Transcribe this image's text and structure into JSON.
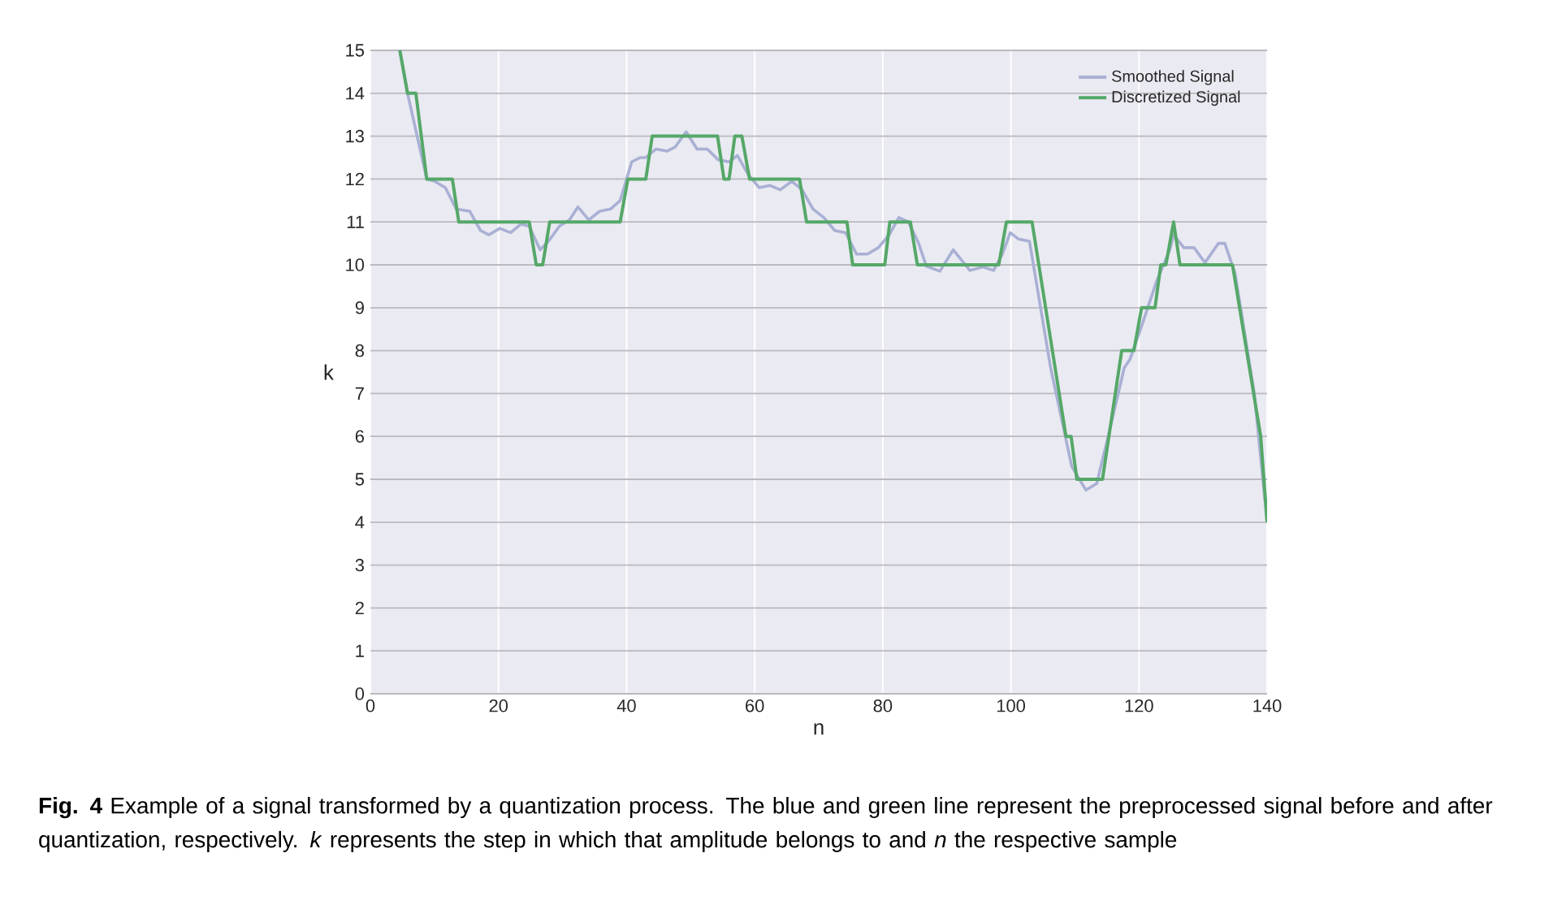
{
  "chart_data": {
    "type": "line",
    "xlabel": "n",
    "ylabel": "k",
    "xlim": [
      0,
      140
    ],
    "ylim": [
      0,
      15
    ],
    "xticks": [
      0,
      20,
      40,
      60,
      80,
      100,
      120,
      140
    ],
    "yticks": [
      0,
      1,
      2,
      3,
      4,
      5,
      6,
      7,
      8,
      9,
      10,
      11,
      12,
      13,
      14,
      15
    ],
    "grid": true,
    "legend": "top right",
    "series": [
      {
        "name": "Smoothed Signal",
        "color": "#a9b0d4",
        "x": [
          4.6,
          5.8,
          8.8,
          10,
          11.7,
          13.4,
          15.5,
          17.2,
          18.5,
          20.2,
          21.9,
          23.5,
          24.8,
          26.5,
          27.8,
          29.5,
          31.1,
          32.4,
          34.1,
          35.8,
          37.5,
          39,
          40.8,
          42.1,
          43,
          44.6,
          46.3,
          47.6,
          49.3,
          51,
          52.6,
          54.3,
          56,
          57.3,
          59,
          60.7,
          62.4,
          64,
          65.8,
          67.4,
          69.1,
          70.8,
          72.5,
          74.2,
          75.9,
          77.6,
          79.3,
          81,
          82.5,
          84,
          85.6,
          86.8,
          88.9,
          91,
          93.6,
          95.6,
          97.3,
          98.6,
          99.9,
          101.2,
          102.9,
          106.2,
          109.5,
          111.7,
          113.4,
          115.5,
          117.7,
          118.6,
          120.7,
          122.7,
          124.8,
          125.4,
          127,
          128.6,
          130.3,
          132.4,
          133.4,
          135,
          138,
          140
        ],
        "values": [
          15,
          14,
          12,
          11.95,
          11.8,
          11.3,
          11.25,
          10.8,
          10.7,
          10.85,
          10.75,
          10.95,
          10.9,
          10.35,
          10.55,
          10.9,
          11.05,
          11.35,
          11.05,
          11.25,
          11.3,
          11.5,
          12.4,
          12.5,
          12.5,
          12.7,
          12.65,
          12.75,
          13.1,
          12.7,
          12.7,
          12.45,
          12.4,
          12.55,
          12.1,
          11.8,
          11.85,
          11.75,
          11.95,
          11.75,
          11.3,
          11.1,
          10.8,
          10.75,
          10.25,
          10.25,
          10.4,
          10.7,
          11.1,
          11,
          10.5,
          9.97,
          9.85,
          10.35,
          9.87,
          9.95,
          9.87,
          10.23,
          10.75,
          10.6,
          10.55,
          7.6,
          5.3,
          4.75,
          4.9,
          6.2,
          7.6,
          7.8,
          8.7,
          9.6,
          10.35,
          10.7,
          10.4,
          10.4,
          10.05,
          10.5,
          10.5,
          9.8,
          7,
          4
        ]
      },
      {
        "name": "Discretized Signal",
        "color": "#55a868",
        "x": [
          4.6,
          5.8,
          7.1,
          8.8,
          12.8,
          13.8,
          24.8,
          25.9,
          26.9,
          28,
          39,
          40.2,
          43,
          44,
          54.2,
          55.2,
          56,
          56.9,
          58,
          59.2,
          67,
          68.1,
          74.4,
          75.3,
          80.3,
          81.1,
          84.3,
          85.4,
          98.1,
          99.3,
          103.3,
          108.6,
          109.4,
          110.3,
          114.3,
          117.3,
          119.2,
          120.4,
          122.5,
          123.4,
          124.2,
          125.4,
          126.4,
          134.6,
          139,
          140
        ],
        "values": [
          15,
          14,
          14,
          12,
          12,
          11,
          11,
          10,
          10,
          11,
          11,
          12,
          12,
          13,
          13,
          12,
          12,
          13,
          13,
          12,
          12,
          11,
          11,
          10,
          10,
          11,
          11,
          10,
          10,
          11,
          11,
          6,
          6,
          5,
          5,
          8,
          8,
          9,
          9,
          10,
          10,
          11,
          10,
          10,
          6,
          4
        ]
      }
    ],
    "annotations": [
      "**Fig. 4** Example of a signal transformed by a quantization process. The blue and green line represent the preprocessed signal before and after quantization, respectively. *k* represents the step in which that amplitude belongs to and *n* the respective sample"
    ]
  }
}
